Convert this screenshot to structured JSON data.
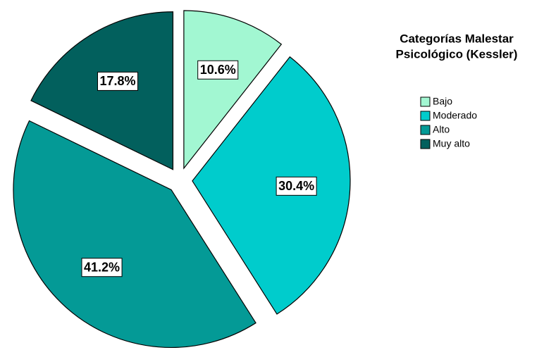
{
  "chart_data": {
    "type": "pie",
    "legend_title": [
      "Categorías Malestar",
      "Psicológico (Kessler)"
    ],
    "categories": [
      "Bajo",
      "Moderado",
      "Alto",
      "Muy alto"
    ],
    "values": [
      10.6,
      30.4,
      41.2,
      17.8
    ],
    "value_labels": [
      "10.6%",
      "30.4%",
      "41.2%",
      "17.8%"
    ],
    "colors": [
      "#a2f7d2",
      "#00cccc",
      "#049a96",
      "#02605d"
    ],
    "legend": "right"
  }
}
